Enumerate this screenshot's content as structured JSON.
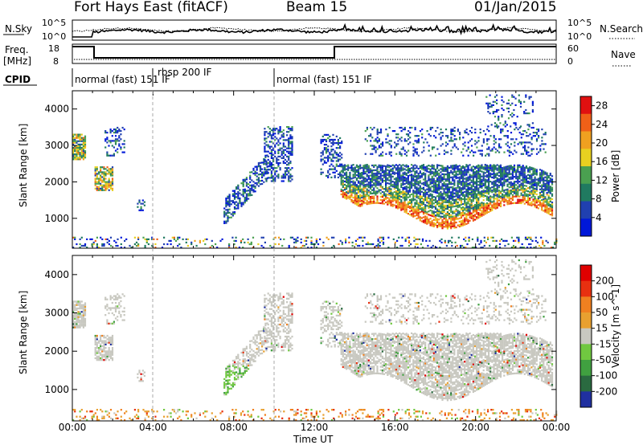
{
  "header": {
    "title": "Fort Hays East (fitACF)",
    "beam": "Beam 15",
    "date": "01/Jan/2015"
  },
  "panels": {
    "nsky": {
      "label": "N.Sky",
      "tick_top": "10^5",
      "tick_bottom": "10^0",
      "right_label": "N.Search",
      "right_tick_top": "10^5",
      "right_tick_bottom": "10^0"
    },
    "freq": {
      "label_line1": "Freq.",
      "label_line2": "[MHz]",
      "tick_top": "18",
      "tick_bottom": "8",
      "right_label": "Nave",
      "right_tick_top": "60",
      "right_tick_bottom": "0"
    },
    "cpid": {
      "label": "CPID",
      "segments": [
        "normal (fast) 151 IF",
        "rbsp 200 IF",
        "normal (fast) 151 IF"
      ]
    }
  },
  "chart_data": [
    {
      "type": "heatmap",
      "title": "",
      "ylabel": "Slant Range [km]",
      "xlabel": "Time UT",
      "x_ticks": [
        "00:00",
        "04:00",
        "08:00",
        "12:00",
        "16:00",
        "20:00",
        "00:00"
      ],
      "y_ticks": [
        1000,
        2000,
        3000,
        4000
      ],
      "ylim": [
        180,
        4500
      ],
      "colorbar": {
        "label": "Power [dB]",
        "ticks": [
          4,
          8,
          12,
          16,
          20,
          24,
          28
        ],
        "range": [
          0,
          30
        ],
        "colors": [
          "#0018d8",
          "#2040b0",
          "#207a60",
          "#4aa050",
          "#e8d020",
          "#f0a020",
          "#f06018",
          "#e01010"
        ]
      }
    },
    {
      "type": "heatmap",
      "title": "",
      "ylabel": "Slant Range [km]",
      "xlabel": "Time UT",
      "x_ticks": [
        "00:00",
        "04:00",
        "08:00",
        "12:00",
        "16:00",
        "20:00",
        "00:00"
      ],
      "y_ticks": [
        1000,
        2000,
        3000,
        4000
      ],
      "ylim": [
        180,
        4500
      ],
      "colorbar": {
        "label": "Velocity [m s^-1]",
        "ticks": [
          200,
          100,
          50,
          15,
          -15,
          -50,
          -100,
          -200
        ],
        "colors": [
          "#2030a0",
          "#2a6a40",
          "#40a040",
          "#70c840",
          "#c8c8c0",
          "#e8a030",
          "#f08020",
          "#e83010",
          "#e00000"
        ]
      }
    }
  ]
}
